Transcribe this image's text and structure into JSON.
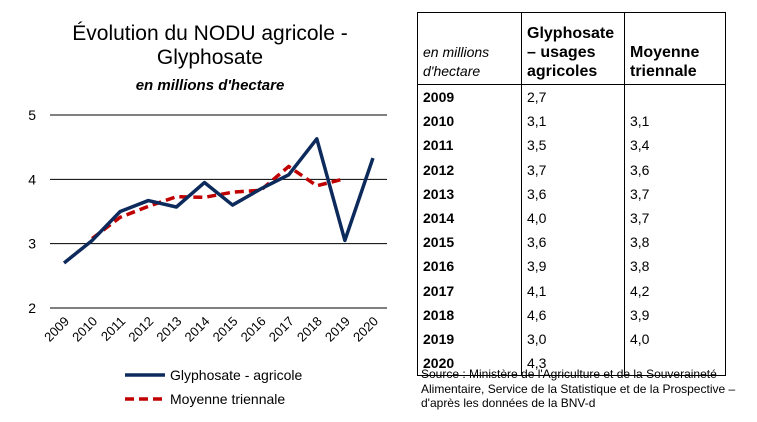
{
  "chart_data": {
    "type": "line",
    "title": "Évolution du NODU agricole - Glyphosate",
    "subtitle": "en millions d'hectare",
    "categories": [
      "2009",
      "2010",
      "2011",
      "2012",
      "2013",
      "2014",
      "2015",
      "2016",
      "2017",
      "2018",
      "2019",
      "2020"
    ],
    "ylim": [
      2,
      5
    ],
    "yticks": [
      "2",
      "3",
      "4",
      "5"
    ],
    "grid": true,
    "legend": "bottom",
    "series": [
      {
        "name": "Glyphosate - agricole",
        "color": "#0d2a5c",
        "style": "solid",
        "values": [
          2.7,
          3.05,
          3.5,
          3.67,
          3.57,
          3.95,
          3.6,
          3.85,
          4.07,
          4.63,
          3.05,
          4.33
        ]
      },
      {
        "name": "Moyenne triennale",
        "color": "#c00000",
        "style": "dashed",
        "values": [
          null,
          3.08,
          3.41,
          3.58,
          3.73,
          3.72,
          3.8,
          3.83,
          4.2,
          3.9,
          4.01,
          null
        ]
      }
    ]
  },
  "table": {
    "headers": [
      "en millions d'hectare",
      "Glyphosate – usages agricoles",
      "Moyenne triennale"
    ],
    "rows": [
      [
        "2009",
        "2,7",
        ""
      ],
      [
        "2010",
        "3,1",
        "3,1"
      ],
      [
        "2011",
        "3,5",
        "3,4"
      ],
      [
        "2012",
        "3,7",
        "3,6"
      ],
      [
        "2013",
        "3,6",
        "3,7"
      ],
      [
        "2014",
        "4,0",
        "3,7"
      ],
      [
        "2015",
        "3,6",
        "3,8"
      ],
      [
        "2016",
        "3,9",
        "3,8"
      ],
      [
        "2017",
        "4,1",
        "4,2"
      ],
      [
        "2018",
        "4,6",
        "3,9"
      ],
      [
        "2019",
        "3,0",
        "4,0"
      ],
      [
        "2020",
        "4,3",
        ""
      ]
    ]
  },
  "source": "Source : Ministère de l'Agriculture et de la Souveraineté Alimentaire, Service de la Statistique et de la Prospective – d'après les données de la BNV-d"
}
